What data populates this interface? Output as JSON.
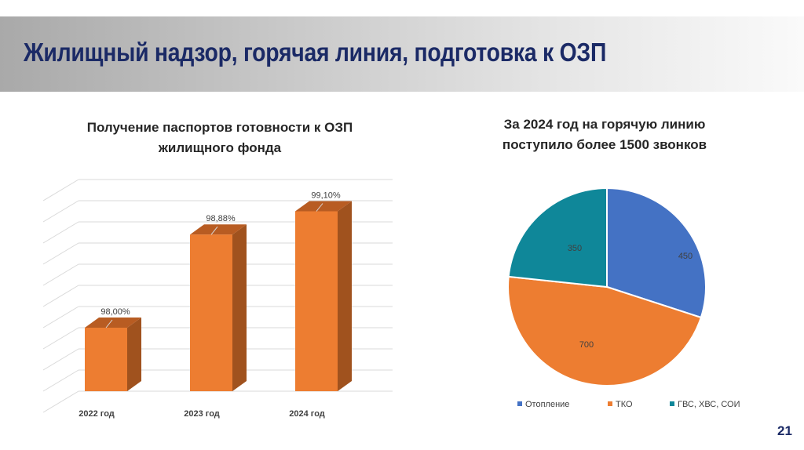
{
  "header": {
    "title": "Жилищный надзор, горячая линия, подготовка к ОЗП"
  },
  "page_number": "21",
  "chart_data": [
    {
      "type": "bar",
      "style": "3d-column",
      "title_lines": [
        "Получение паспортов готовности к ОЗП",
        "жилищного фонда"
      ],
      "categories": [
        "2022 год",
        "2023 год",
        "2024 год"
      ],
      "values": [
        98.0,
        98.88,
        99.1
      ],
      "data_labels": [
        "98,00%",
        "98,88%",
        "99,10%"
      ],
      "ylim": [
        97.4,
        99.4
      ],
      "grid": true,
      "color": "#ed7d31"
    },
    {
      "type": "pie",
      "title_lines": [
        "За 2024 год на горячую линию",
        "поступило более 1500 звонков"
      ],
      "categories": [
        "Отопление",
        "ТКО",
        "ГВС, ХВС, СОИ"
      ],
      "values": [
        450,
        700,
        350
      ],
      "data_labels": [
        "450",
        "700",
        "350"
      ],
      "colors": [
        "#4472c4",
        "#ed7d31",
        "#0f8799"
      ],
      "legend": "bottom"
    }
  ]
}
